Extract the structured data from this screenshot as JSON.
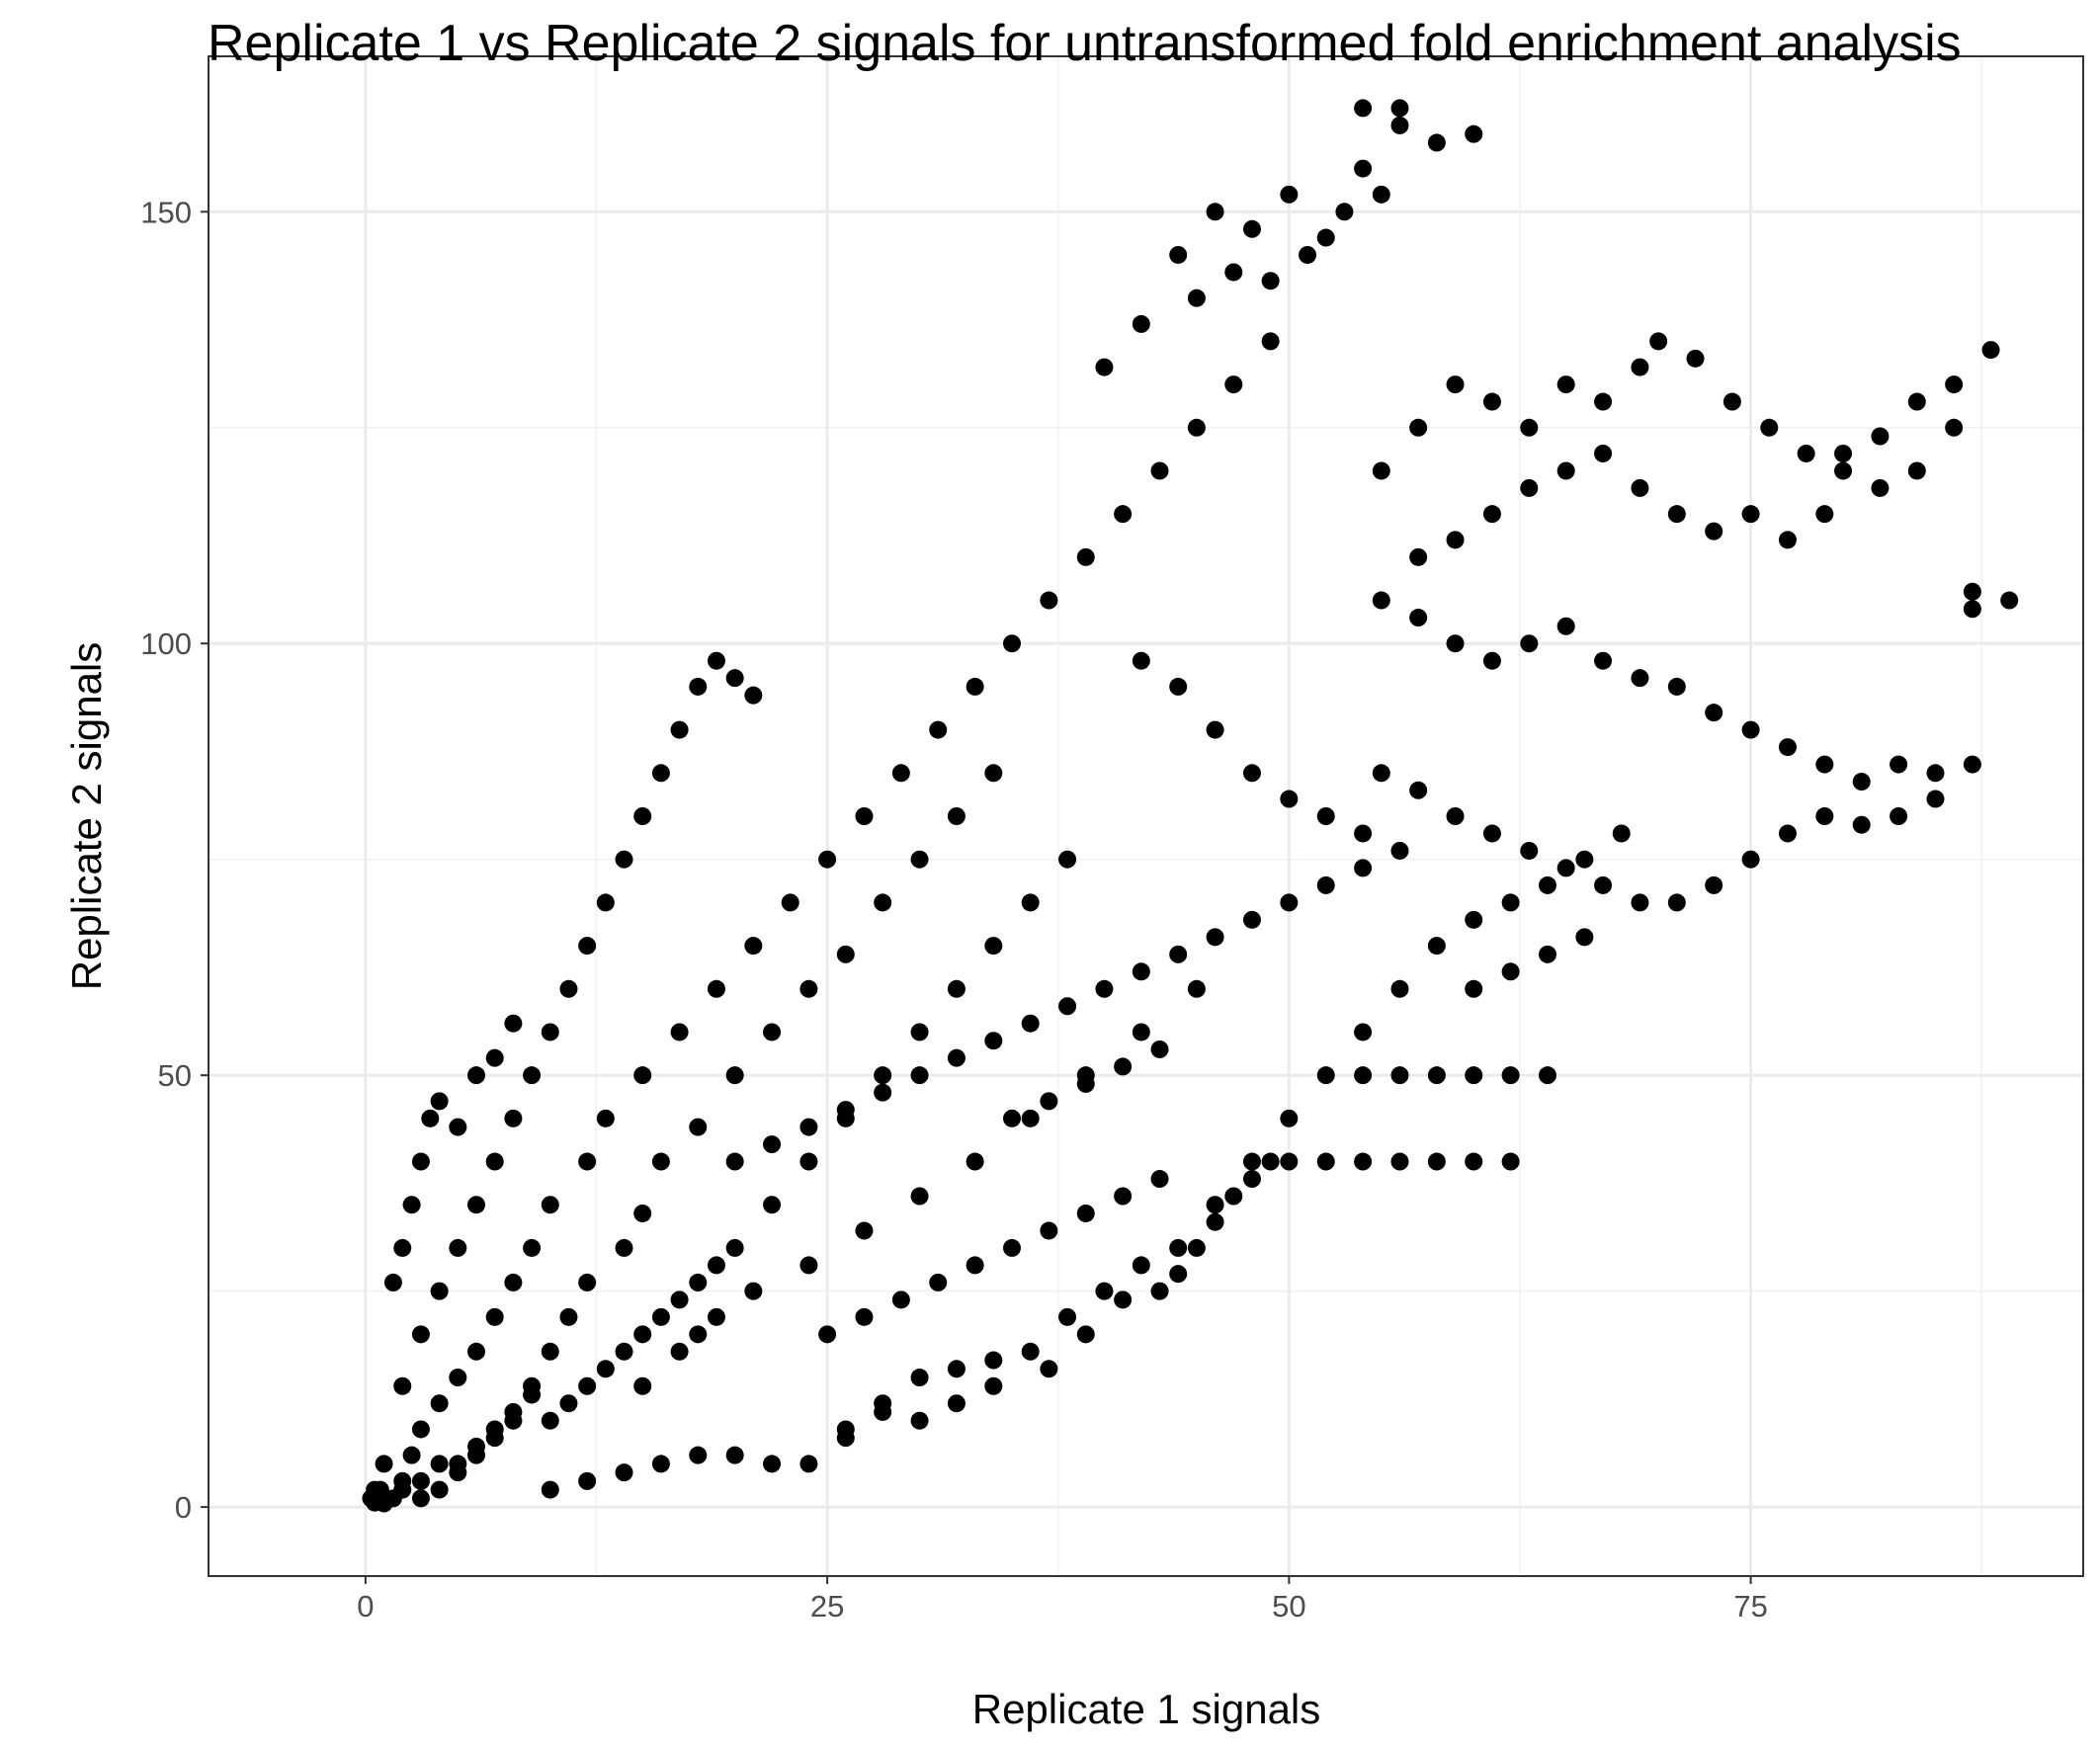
{
  "chart_data": {
    "type": "scatter",
    "title": "Replicate 1 vs Replicate 2 signals for untransformed fold enrichment analysis",
    "xlabel": "Replicate 1 signals",
    "ylabel": "Replicate 2 signals",
    "xlim": [
      -8.5,
      93
    ],
    "ylim": [
      -8,
      168
    ],
    "x_ticks": [
      0,
      25,
      50,
      75
    ],
    "x_tick_labels": [
      "0",
      "25",
      "50",
      "75"
    ],
    "y_ticks": [
      0,
      50,
      100,
      150
    ],
    "y_tick_labels": [
      "0",
      "50",
      "100",
      "150"
    ],
    "grid": true,
    "legend": "none",
    "point_color": "#000000",
    "theme": "black-and-white",
    "points": [
      [
        0.5,
        0.5
      ],
      [
        0.3,
        1
      ],
      [
        1,
        0.4
      ],
      [
        0.8,
        2
      ],
      [
        1.5,
        1
      ],
      [
        2,
        3
      ],
      [
        1,
        5
      ],
      [
        3,
        1
      ],
      [
        2.5,
        6
      ],
      [
        4,
        2
      ],
      [
        3,
        9
      ],
      [
        5,
        4
      ],
      [
        4,
        12
      ],
      [
        6,
        6
      ],
      [
        5,
        15
      ],
      [
        7,
        8
      ],
      [
        6,
        18
      ],
      [
        8,
        10
      ],
      [
        7,
        22
      ],
      [
        9,
        14
      ],
      [
        8,
        26
      ],
      [
        10,
        18
      ],
      [
        9,
        30
      ],
      [
        11,
        22
      ],
      [
        10,
        35
      ],
      [
        12,
        26
      ],
      [
        12,
        40
      ],
      [
        14,
        30
      ],
      [
        13,
        45
      ],
      [
        15,
        34
      ],
      [
        15,
        50
      ],
      [
        16,
        40
      ],
      [
        17,
        55
      ],
      [
        18,
        44
      ],
      [
        19,
        60
      ],
      [
        20,
        50
      ],
      [
        21,
        65
      ],
      [
        22,
        55
      ],
      [
        23,
        70
      ],
      [
        24,
        60
      ],
      [
        25,
        75
      ],
      [
        26,
        64
      ],
      [
        27,
        80
      ],
      [
        28,
        70
      ],
      [
        29,
        85
      ],
      [
        30,
        75
      ],
      [
        31,
        90
      ],
      [
        32,
        80
      ],
      [
        33,
        95
      ],
      [
        34,
        85
      ],
      [
        20,
        30
      ],
      [
        22,
        35
      ],
      [
        24,
        40
      ],
      [
        26,
        45
      ],
      [
        28,
        50
      ],
      [
        30,
        55
      ],
      [
        32,
        60
      ],
      [
        34,
        65
      ],
      [
        36,
        70
      ],
      [
        38,
        75
      ],
      [
        18,
        20
      ],
      [
        21,
        25
      ],
      [
        24,
        28
      ],
      [
        27,
        32
      ],
      [
        30,
        36
      ],
      [
        33,
        40
      ],
      [
        36,
        45
      ],
      [
        39,
        50
      ],
      [
        42,
        55
      ],
      [
        45,
        60
      ],
      [
        2,
        14
      ],
      [
        3,
        20
      ],
      [
        4,
        25
      ],
      [
        5,
        30
      ],
      [
        6,
        35
      ],
      [
        7,
        40
      ],
      [
        8,
        45
      ],
      [
        9,
        50
      ],
      [
        10,
        55
      ],
      [
        11,
        60
      ],
      [
        12,
        65
      ],
      [
        13,
        70
      ],
      [
        14,
        75
      ],
      [
        15,
        80
      ],
      [
        16,
        85
      ],
      [
        17,
        90
      ],
      [
        18,
        95
      ],
      [
        19,
        98
      ],
      [
        20,
        96
      ],
      [
        21,
        94
      ],
      [
        1.5,
        26
      ],
      [
        2,
        30
      ],
      [
        2.5,
        35
      ],
      [
        3,
        40
      ],
      [
        3.5,
        45
      ],
      [
        4,
        47
      ],
      [
        5,
        44
      ],
      [
        6,
        50
      ],
      [
        7,
        52
      ],
      [
        8,
        56
      ],
      [
        10,
        2
      ],
      [
        12,
        3
      ],
      [
        14,
        4
      ],
      [
        16,
        5
      ],
      [
        18,
        6
      ],
      [
        20,
        6
      ],
      [
        22,
        5
      ],
      [
        24,
        5
      ],
      [
        26,
        9
      ],
      [
        28,
        12
      ],
      [
        30,
        15
      ],
      [
        32,
        16
      ],
      [
        34,
        17
      ],
      [
        36,
        18
      ],
      [
        38,
        22
      ],
      [
        40,
        25
      ],
      [
        42,
        28
      ],
      [
        44,
        30
      ],
      [
        46,
        35
      ],
      [
        48,
        40
      ],
      [
        50,
        45
      ],
      [
        52,
        50
      ],
      [
        54,
        55
      ],
      [
        56,
        60
      ],
      [
        58,
        65
      ],
      [
        60,
        68
      ],
      [
        62,
        70
      ],
      [
        64,
        72
      ],
      [
        66,
        75
      ],
      [
        68,
        78
      ],
      [
        50,
        40
      ],
      [
        52,
        40
      ],
      [
        54,
        40
      ],
      [
        56,
        40
      ],
      [
        58,
        40
      ],
      [
        60,
        40
      ],
      [
        62,
        40
      ],
      [
        54,
        50
      ],
      [
        56,
        50
      ],
      [
        58,
        50
      ],
      [
        60,
        50
      ],
      [
        62,
        50
      ],
      [
        64,
        50
      ],
      [
        43,
        25
      ],
      [
        44,
        27
      ],
      [
        45,
        30
      ],
      [
        46,
        33
      ],
      [
        47,
        36
      ],
      [
        48,
        38
      ],
      [
        49,
        40
      ],
      [
        37,
        16
      ],
      [
        39,
        20
      ],
      [
        41,
        24
      ],
      [
        15,
        14
      ],
      [
        17,
        18
      ],
      [
        19,
        22
      ],
      [
        35,
        100
      ],
      [
        37,
        105
      ],
      [
        39,
        110
      ],
      [
        41,
        115
      ],
      [
        43,
        120
      ],
      [
        45,
        125
      ],
      [
        47,
        130
      ],
      [
        49,
        135
      ],
      [
        40,
        132
      ],
      [
        42,
        137
      ],
      [
        44,
        145
      ],
      [
        46,
        150
      ],
      [
        48,
        148
      ],
      [
        50,
        152
      ],
      [
        52,
        147
      ],
      [
        54,
        155
      ],
      [
        56,
        160
      ],
      [
        58,
        158
      ],
      [
        60,
        159
      ],
      [
        54,
        162
      ],
      [
        56,
        162
      ],
      [
        45,
        140
      ],
      [
        47,
        143
      ],
      [
        49,
        142
      ],
      [
        51,
        145
      ],
      [
        53,
        150
      ],
      [
        55,
        152
      ],
      [
        55,
        120
      ],
      [
        57,
        125
      ],
      [
        59,
        130
      ],
      [
        61,
        128
      ],
      [
        63,
        125
      ],
      [
        65,
        130
      ],
      [
        67,
        128
      ],
      [
        69,
        132
      ],
      [
        70,
        135
      ],
      [
        72,
        133
      ],
      [
        74,
        128
      ],
      [
        76,
        125
      ],
      [
        78,
        122
      ],
      [
        80,
        120
      ],
      [
        82,
        118
      ],
      [
        84,
        120
      ],
      [
        86,
        125
      ],
      [
        88,
        134
      ],
      [
        86,
        130
      ],
      [
        84,
        128
      ],
      [
        82,
        124
      ],
      [
        80,
        122
      ],
      [
        57,
        110
      ],
      [
        59,
        112
      ],
      [
        61,
        115
      ],
      [
        63,
        118
      ],
      [
        65,
        120
      ],
      [
        67,
        122
      ],
      [
        69,
        118
      ],
      [
        71,
        115
      ],
      [
        73,
        113
      ],
      [
        75,
        115
      ],
      [
        77,
        112
      ],
      [
        79,
        115
      ],
      [
        55,
        105
      ],
      [
        57,
        103
      ],
      [
        59,
        100
      ],
      [
        61,
        98
      ],
      [
        63,
        100
      ],
      [
        65,
        102
      ],
      [
        67,
        98
      ],
      [
        69,
        96
      ],
      [
        71,
        95
      ],
      [
        73,
        92
      ],
      [
        75,
        90
      ],
      [
        77,
        88
      ],
      [
        79,
        86
      ],
      [
        81,
        84
      ],
      [
        83,
        86
      ],
      [
        85,
        85
      ],
      [
        87,
        86
      ],
      [
        89,
        105
      ],
      [
        87,
        104
      ],
      [
        87,
        106
      ],
      [
        55,
        85
      ],
      [
        57,
        83
      ],
      [
        59,
        80
      ],
      [
        61,
        78
      ],
      [
        63,
        76
      ],
      [
        65,
        74
      ],
      [
        67,
        72
      ],
      [
        69,
        70
      ],
      [
        71,
        70
      ],
      [
        73,
        72
      ],
      [
        75,
        75
      ],
      [
        77,
        78
      ],
      [
        79,
        80
      ],
      [
        81,
        79
      ],
      [
        83,
        80
      ],
      [
        85,
        82
      ],
      [
        60,
        60
      ],
      [
        62,
        62
      ],
      [
        64,
        64
      ],
      [
        66,
        66
      ],
      [
        50,
        70
      ],
      [
        52,
        72
      ],
      [
        54,
        74
      ],
      [
        56,
        76
      ],
      [
        48,
        85
      ],
      [
        50,
        82
      ],
      [
        52,
        80
      ],
      [
        54,
        78
      ],
      [
        46,
        90
      ],
      [
        44,
        95
      ],
      [
        42,
        98
      ],
      [
        30,
        10
      ],
      [
        32,
        12
      ],
      [
        34,
        14
      ],
      [
        26,
        8
      ],
      [
        28,
        11
      ],
      [
        20,
        40
      ],
      [
        22,
        42
      ],
      [
        24,
        44
      ],
      [
        26,
        46
      ],
      [
        28,
        48
      ],
      [
        30,
        50
      ],
      [
        32,
        52
      ],
      [
        34,
        54
      ],
      [
        36,
        56
      ],
      [
        38,
        58
      ],
      [
        40,
        60
      ],
      [
        42,
        62
      ],
      [
        44,
        64
      ],
      [
        46,
        66
      ],
      [
        48,
        68
      ],
      [
        35,
        45
      ],
      [
        37,
        47
      ],
      [
        39,
        49
      ],
      [
        41,
        51
      ],
      [
        43,
        53
      ],
      [
        25,
        20
      ],
      [
        27,
        22
      ],
      [
        29,
        24
      ],
      [
        31,
        26
      ],
      [
        33,
        28
      ],
      [
        35,
        30
      ],
      [
        37,
        32
      ],
      [
        39,
        34
      ],
      [
        41,
        36
      ],
      [
        43,
        38
      ],
      [
        10,
        10
      ],
      [
        11,
        12
      ],
      [
        12,
        14
      ],
      [
        13,
        16
      ],
      [
        14,
        18
      ],
      [
        15,
        20
      ],
      [
        16,
        22
      ],
      [
        17,
        24
      ],
      [
        18,
        26
      ],
      [
        19,
        28
      ],
      [
        5,
        5
      ],
      [
        6,
        7
      ],
      [
        7,
        9
      ],
      [
        8,
        11
      ],
      [
        9,
        13
      ],
      [
        3,
        3
      ],
      [
        4,
        5
      ],
      [
        2,
        2
      ],
      [
        1,
        1
      ],
      [
        0.5,
        2
      ]
    ]
  }
}
